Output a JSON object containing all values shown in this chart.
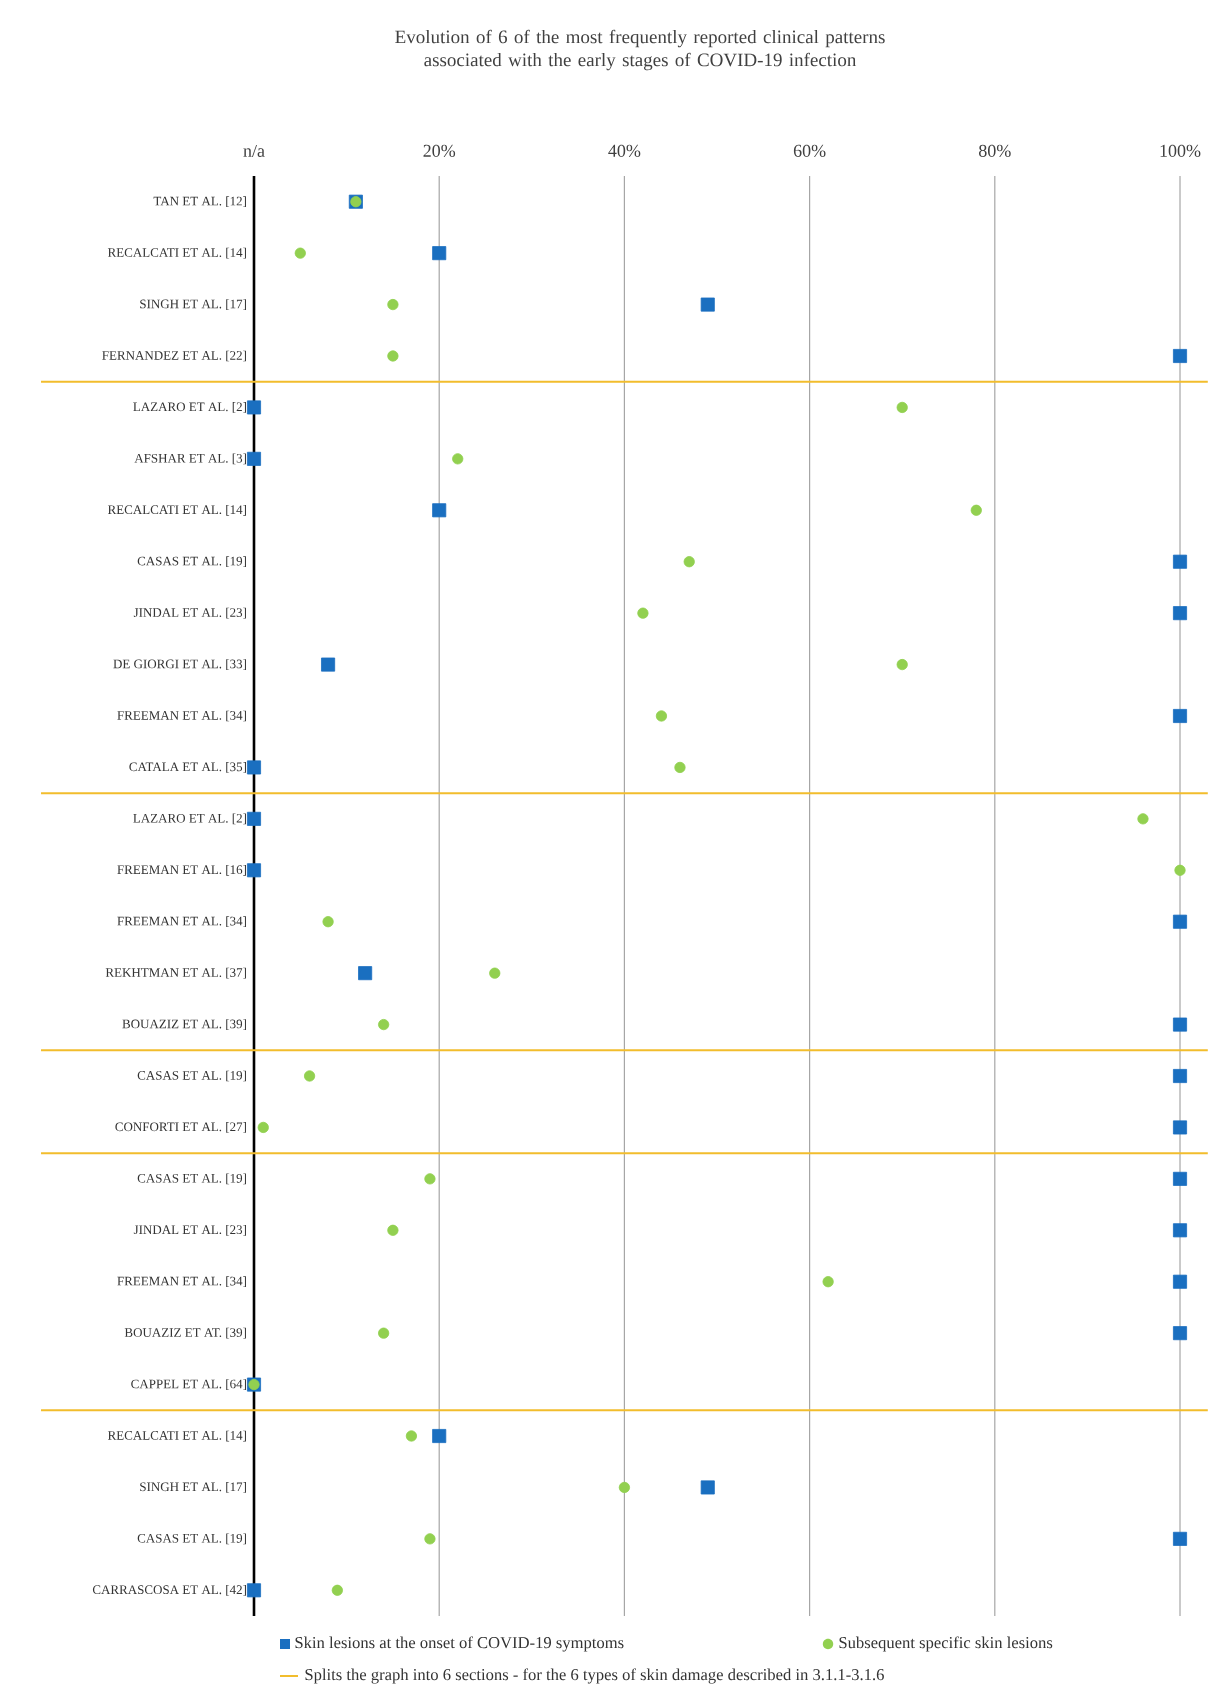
{
  "chart_data": {
    "type": "scatter",
    "orientation": "horizontal",
    "title": "Evolution of 6 of the most frequently reported clinical patterns associated with the early stages of COVID-19 infection",
    "categories": [
      "TAN ET AL. [12]",
      "RECALCATI ET AL. [14]",
      "SINGH ET AL. [17]",
      "FERNANDEZ ET AL. [22]",
      "LAZARO ET AL. [2]",
      "AFSHAR ET AL. [3]",
      "RECALCATI ET AL. [14]",
      "CASAS ET AL. [19]",
      "JINDAL ET AL. [23]",
      "DE GIORGI ET AL. [33]",
      "FREEMAN ET AL. [34]",
      "CATALA ET AL. [35]",
      "LAZARO ET AL. [2]",
      "FREEMAN ET AL. [16]",
      "FREEMAN ET AL. [34]",
      "REKHTMAN ET AL. [37]",
      "BOUAZIZ ET AL. [39]",
      "CASAS ET AL. [19]",
      "CONFORTI ET AL. [27]",
      "CASAS ET AL. [19]",
      "JINDAL ET AL. [23]",
      "FREEMAN ET AL. [34]",
      "BOUAZIZ ET AT. [39]",
      "CAPPEL ET AL. [64]",
      "RECALCATI ET AL. [14]",
      "SINGH ET AL. [17]",
      "CASAS ET AL. [19]",
      "CARRASCOSA ET AL. [42]"
    ],
    "series": [
      {
        "name": "Skin lesions at the onset of COVID-19 symptoms",
        "color": "#1a6fc0",
        "marker": "square",
        "values": [
          11,
          20,
          49,
          100,
          0,
          0,
          20,
          100,
          100,
          8,
          100,
          0,
          0,
          0,
          100,
          12,
          100,
          100,
          100,
          100,
          100,
          100,
          100,
          0,
          20,
          49,
          100,
          0
        ]
      },
      {
        "name": "Subsequent specific skin lesions",
        "color": "#92d050",
        "marker": "circle",
        "values": [
          11,
          5,
          15,
          15,
          70,
          22,
          78,
          47,
          42,
          70,
          44,
          46,
          96,
          100,
          8,
          26,
          14,
          6,
          1,
          19,
          15,
          62,
          14,
          0,
          17,
          40,
          19,
          9
        ]
      }
    ],
    "xlim": [
      0,
      100
    ],
    "xticks": [
      {
        "value": 0,
        "label": "n/a"
      },
      {
        "value": 20,
        "label": "20%"
      },
      {
        "value": 40,
        "label": "40%"
      },
      {
        "value": 60,
        "label": "60%"
      },
      {
        "value": 80,
        "label": "80%"
      },
      {
        "value": 100,
        "label": "100%"
      }
    ],
    "grid": "x",
    "legend": "bottom",
    "annotations": [
      "Splits the graph into 6 sections - for the 6 types of skin damage described in 3.1.1-3.1.6"
    ]
  }
}
